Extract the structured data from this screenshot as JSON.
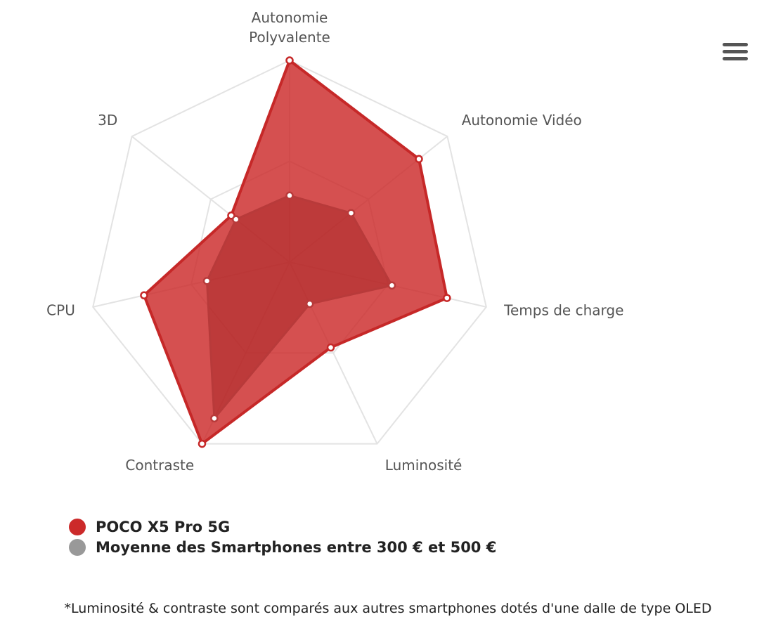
{
  "chart_data": {
    "type": "radar",
    "categories": [
      "Autonomie Polyvalente",
      "Autonomie Vidéo",
      "Temps de charge",
      "Luminosité",
      "Contraste",
      "CPU",
      "3D"
    ],
    "category_label_lines": [
      [
        "Autonomie",
        "Polyvalente"
      ],
      [
        "Autonomie Vidéo"
      ],
      [
        "Temps de charge"
      ],
      [
        "Luminosité"
      ],
      [
        "Contraste"
      ],
      [
        "CPU"
      ],
      [
        "3D"
      ]
    ],
    "ylim": [
      0,
      100
    ],
    "grid": true,
    "grid_rings": 2,
    "legend_position": "bottom-left",
    "series": [
      {
        "name": "POCO X5 Pro 5G",
        "color": "#cc2a2a",
        "values": [
          100,
          82,
          80,
          47,
          100,
          74,
          37
        ]
      },
      {
        "name": "Moyenne des Smartphones entre 300 € et 500 €",
        "color": "#999999",
        "values": [
          33,
          39,
          52,
          23,
          86,
          42,
          34
        ]
      }
    ]
  },
  "footnote": "*Luminosité & contraste sont comparés aux autres smartphones dotés d'une dalle de type OLED",
  "menu": {
    "icon": "hamburger-menu-icon"
  }
}
